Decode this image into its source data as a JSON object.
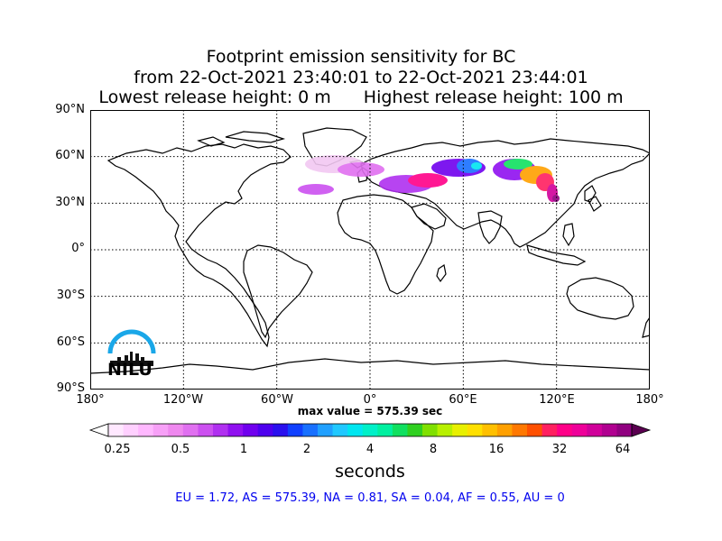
{
  "title": {
    "line1": "Footprint emission sensitivity for BC",
    "line2": "from 22-Oct-2021 23:40:01 to 22-Oct-2021 23:44:01",
    "line3_left": "Lowest release height: 0 m",
    "line3_right": "Highest release height: 100 m"
  },
  "map": {
    "projection": "cylindrical",
    "lat_ticks": [
      "90°N",
      "60°N",
      "30°N",
      "0°",
      "30°S",
      "60°S",
      "90°S"
    ],
    "lon_ticks": [
      "180°",
      "120°W",
      "60°W",
      "0°",
      "60°E",
      "120°E",
      "180°"
    ],
    "grid": "dotted"
  },
  "max_value_text": "max value = 575.39 sec",
  "colorbar": {
    "tick_labels": [
      "0.25",
      "0.5",
      "1",
      "2",
      "4",
      "8",
      "16",
      "32",
      "64"
    ],
    "units": "seconds",
    "colors": [
      "#ffe8ff",
      "#ffd0ff",
      "#ffb8ff",
      "#f7a0f7",
      "#ef88ef",
      "#e070f0",
      "#cc50f0",
      "#b030f0",
      "#9010f0",
      "#7000ee",
      "#4e00ee",
      "#2a10ee",
      "#1040ff",
      "#1870ff",
      "#20a0ff",
      "#20c8ff",
      "#00e6f0",
      "#00f0c8",
      "#00f0a0",
      "#10e060",
      "#30d020",
      "#80e000",
      "#b8f000",
      "#e8f000",
      "#ffe000",
      "#ffc000",
      "#ffa000",
      "#ff7800",
      "#ff5000",
      "#ff2060",
      "#ff0088",
      "#ee0099",
      "#d0009a",
      "#b00090",
      "#900080"
    ]
  },
  "region_values": "EU = 1.72,  AS = 575.39,  NA = 0.81,  SA = 0.04,  AF = 0.55,  AU = 0",
  "logo": {
    "text": "NILU",
    "color": "#1aa7e8"
  }
}
